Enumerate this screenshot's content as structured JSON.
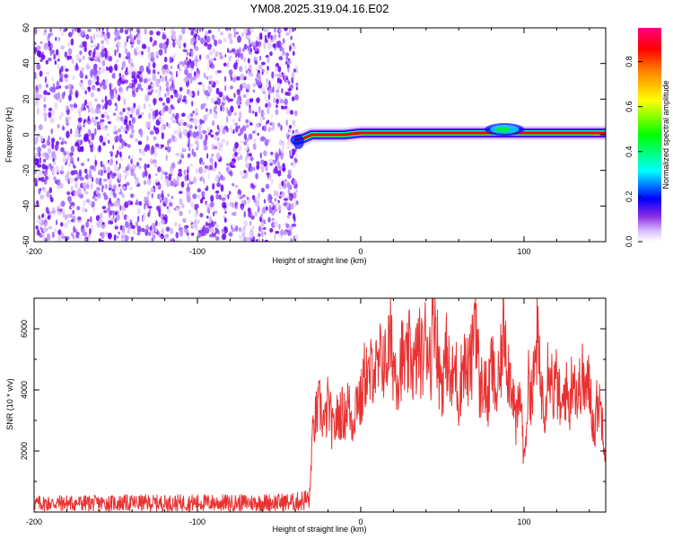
{
  "title": "YM08.2025.319.04.16.E02",
  "chart_data": [
    {
      "type": "heatmap",
      "name": "spectrogram",
      "xlabel": "Height of straight line (km)",
      "ylabel": "Frequency (Hz)",
      "xlim": [
        -200,
        150
      ],
      "ylim": [
        -60,
        60
      ],
      "xticks": [
        -200,
        -100,
        0,
        100
      ],
      "yticks": [
        -60,
        -40,
        -20,
        0,
        20,
        40,
        60
      ],
      "noise_region_x": [
        -200,
        -40
      ],
      "signal_track": {
        "x": [
          -40,
          -35,
          -30,
          -20,
          -10,
          0,
          10,
          20,
          40,
          60,
          80,
          90,
          100,
          120,
          150
        ],
        "y": [
          -3,
          -2,
          0,
          0,
          0,
          1,
          1,
          1,
          1,
          1,
          1,
          1,
          1,
          1,
          1
        ]
      },
      "colorbar": {
        "label": "Normalized spectral amplitude",
        "range": [
          0,
          1
        ],
        "ticks": [
          "0.0",
          "0.2",
          "0.4",
          "0.6",
          "0.8"
        ],
        "colors": [
          "#ffffff",
          "#b070ff",
          "#7000ff",
          "#0000ff",
          "#00ffff",
          "#00ff00",
          "#ffff00",
          "#ff8000",
          "#ff0000",
          "#ff0080"
        ]
      }
    },
    {
      "type": "line",
      "name": "snr",
      "xlabel": "Height of straight line (km)",
      "ylabel": "SNR (10 * v/v)",
      "xlim": [
        -200,
        150
      ],
      "ylim": [
        0,
        7000
      ],
      "xticks": [
        -200,
        -100,
        0,
        100
      ],
      "yticks": [
        2000,
        4000,
        6000
      ],
      "color": "#e83232",
      "series": [
        {
          "name": "SNR",
          "x": [
            -200,
            -180,
            -160,
            -140,
            -120,
            -100,
            -80,
            -60,
            -40,
            -31,
            -30,
            -28,
            -25,
            -22,
            -20,
            -17,
            -15,
            -12,
            -10,
            -8,
            -5,
            -2,
            0,
            3,
            5,
            8,
            10,
            13,
            15,
            18,
            20,
            23,
            25,
            28,
            30,
            33,
            35,
            38,
            40,
            43,
            45,
            48,
            50,
            53,
            55,
            58,
            60,
            63,
            65,
            68,
            70,
            73,
            75,
            78,
            80,
            83,
            85,
            88,
            90,
            93,
            95,
            98,
            100,
            103,
            105,
            108,
            110,
            113,
            115,
            118,
            120,
            123,
            125,
            128,
            130,
            133,
            135,
            138,
            140,
            143,
            145,
            148,
            150
          ],
          "values": [
            450,
            470,
            460,
            480,
            470,
            490,
            480,
            500,
            520,
            700,
            2200,
            3000,
            3500,
            2800,
            3600,
            2600,
            3000,
            3300,
            3100,
            3600,
            2900,
            3900,
            3500,
            4700,
            4200,
            5000,
            4400,
            5200,
            4800,
            5600,
            4900,
            4500,
            5100,
            4700,
            5300,
            4600,
            5400,
            5000,
            5800,
            5100,
            6900,
            4600,
            4300,
            5300,
            4000,
            4800,
            3700,
            5100,
            4500,
            4900,
            7000,
            3800,
            4400,
            3600,
            4900,
            3800,
            4300,
            6300,
            4800,
            4200,
            2800,
            3900,
            1600,
            4400,
            3700,
            5700,
            4200,
            3500,
            5200,
            3900,
            4300,
            3100,
            4100,
            3500,
            4800,
            3600,
            4500,
            3900,
            4200,
            2600,
            3700,
            3100,
            1800
          ]
        }
      ]
    }
  ]
}
